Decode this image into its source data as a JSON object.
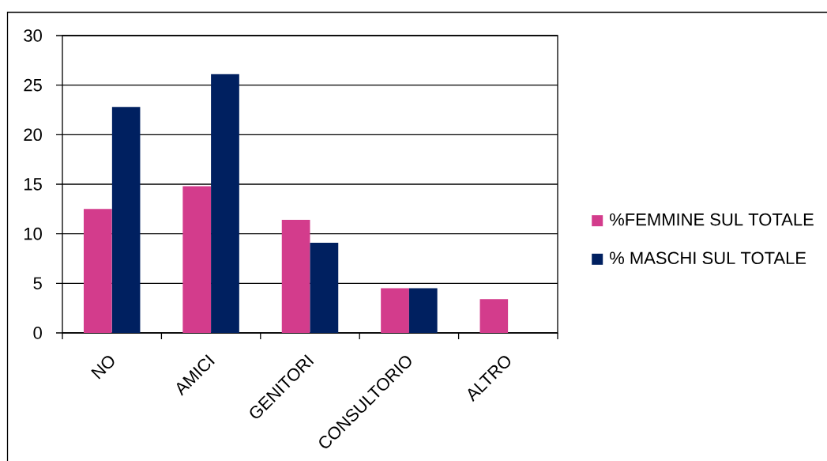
{
  "chart_data": {
    "type": "bar",
    "categories": [
      "NO",
      "AMICI",
      "GENITORI",
      "CONSULTORIO",
      "ALTRO"
    ],
    "series": [
      {
        "name": "%FEMMINE SUL TOTALE",
        "color": "#d33c8c",
        "values": [
          12.5,
          14.8,
          11.4,
          4.5,
          3.4
        ]
      },
      {
        "name": "% MASCHI SUL TOTALE",
        "color": "#002060",
        "values": [
          22.8,
          26.1,
          9.1,
          4.5,
          0
        ]
      }
    ],
    "ylim": [
      0,
      30
    ],
    "yticks": [
      0,
      5,
      10,
      15,
      20,
      25,
      30
    ],
    "grid": "y",
    "legend": "right"
  }
}
